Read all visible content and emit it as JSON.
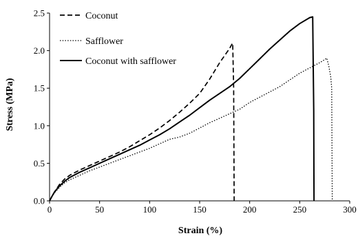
{
  "chart_data": {
    "type": "line",
    "xlabel": "Strain (%)",
    "ylabel": "Stress (MPa)",
    "xlim": [
      0,
      300
    ],
    "ylim": [
      0,
      2.5
    ],
    "xticks": [
      "0",
      "50",
      "100",
      "150",
      "200",
      "250",
      "300"
    ],
    "yticks": [
      "0.0",
      "0.5",
      "1.0",
      "1.5",
      "2.0",
      "2.5"
    ],
    "grid": false,
    "legend_position": "top-left",
    "series": [
      {
        "name": "Coconut",
        "style": "dashed",
        "color": "#000000",
        "x": [
          0,
          2,
          5,
          10,
          15,
          20,
          30,
          40,
          50,
          60,
          70,
          80,
          90,
          100,
          110,
          120,
          130,
          140,
          150,
          160,
          170,
          180,
          182,
          183,
          184,
          184.5
        ],
        "y": [
          0,
          0.05,
          0.12,
          0.22,
          0.29,
          0.34,
          0.41,
          0.47,
          0.53,
          0.59,
          0.65,
          0.72,
          0.8,
          0.88,
          0.97,
          1.07,
          1.18,
          1.3,
          1.43,
          1.62,
          1.84,
          2.03,
          2.08,
          2.1,
          1.5,
          0.0
        ]
      },
      {
        "name": "Safflower",
        "style": "dotted",
        "color": "#000000",
        "x": [
          0,
          2,
          5,
          10,
          15,
          20,
          30,
          40,
          50,
          60,
          70,
          80,
          90,
          100,
          110,
          120,
          130,
          140,
          150,
          160,
          170,
          180,
          190,
          200,
          210,
          220,
          230,
          240,
          250,
          260,
          270,
          275,
          277,
          279,
          281,
          282,
          282.5
        ],
        "y": [
          0,
          0.05,
          0.11,
          0.18,
          0.24,
          0.28,
          0.34,
          0.4,
          0.45,
          0.5,
          0.55,
          0.6,
          0.65,
          0.7,
          0.76,
          0.82,
          0.85,
          0.9,
          0.97,
          1.04,
          1.1,
          1.16,
          1.22,
          1.31,
          1.38,
          1.45,
          1.52,
          1.61,
          1.7,
          1.77,
          1.84,
          1.88,
          1.9,
          1.8,
          1.65,
          1.5,
          0.0
        ]
      },
      {
        "name": "Coconut with safflower",
        "style": "solid",
        "color": "#000000",
        "x": [
          0,
          2,
          5,
          10,
          15,
          20,
          30,
          40,
          50,
          60,
          70,
          80,
          90,
          100,
          110,
          120,
          130,
          140,
          150,
          160,
          170,
          180,
          190,
          200,
          210,
          220,
          230,
          240,
          250,
          260,
          263,
          264,
          264.3
        ],
        "y": [
          0,
          0.05,
          0.12,
          0.2,
          0.26,
          0.31,
          0.38,
          0.44,
          0.5,
          0.56,
          0.62,
          0.68,
          0.74,
          0.81,
          0.88,
          0.96,
          1.05,
          1.14,
          1.24,
          1.34,
          1.43,
          1.52,
          1.63,
          1.76,
          1.89,
          2.02,
          2.14,
          2.26,
          2.36,
          2.44,
          2.45,
          1.2,
          0.0
        ]
      }
    ]
  }
}
